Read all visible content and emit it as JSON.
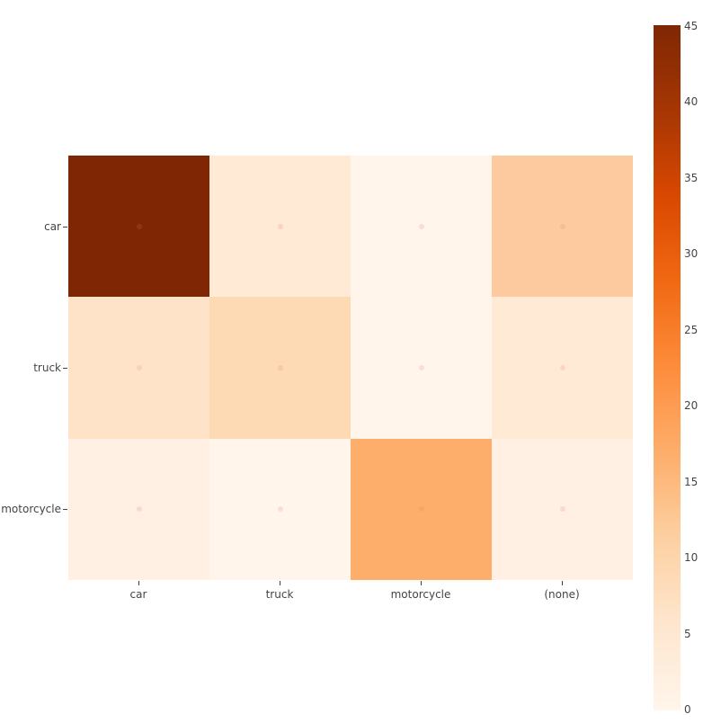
{
  "chart_data": {
    "type": "heatmap",
    "title": "",
    "xlabel": "",
    "ylabel": "",
    "x": [
      "car",
      "truck",
      "motorcycle",
      "(none)"
    ],
    "y": [
      "car",
      "truck",
      "motorcycle"
    ],
    "z": [
      [
        45,
        3,
        0,
        11
      ],
      [
        4,
        7,
        0,
        3
      ],
      [
        1,
        0,
        17,
        1
      ]
    ],
    "colorscale": "Oranges",
    "zlim": [
      0,
      45
    ],
    "colorbar_ticks": [
      0,
      5,
      10,
      15,
      20,
      25,
      30,
      35,
      40,
      45
    ],
    "cell_colors": [
      [
        "#7f2704",
        "#feead5",
        "#fff5eb",
        "#fdca9f"
      ],
      [
        "#fee3c8",
        "#fdd9b4",
        "#fff5eb",
        "#feead5"
      ],
      [
        "#fff0e3",
        "#fff5eb",
        "#fdae6b",
        "#fff0e3"
      ]
    ]
  },
  "x_labels": [
    "car",
    "truck",
    "motorcycle",
    "(none)"
  ],
  "y_labels": [
    "car",
    "truck",
    "motorcycle"
  ],
  "colorbar_labels": [
    "45",
    "40",
    "35",
    "30",
    "25",
    "20",
    "15",
    "10",
    "5",
    "0"
  ]
}
